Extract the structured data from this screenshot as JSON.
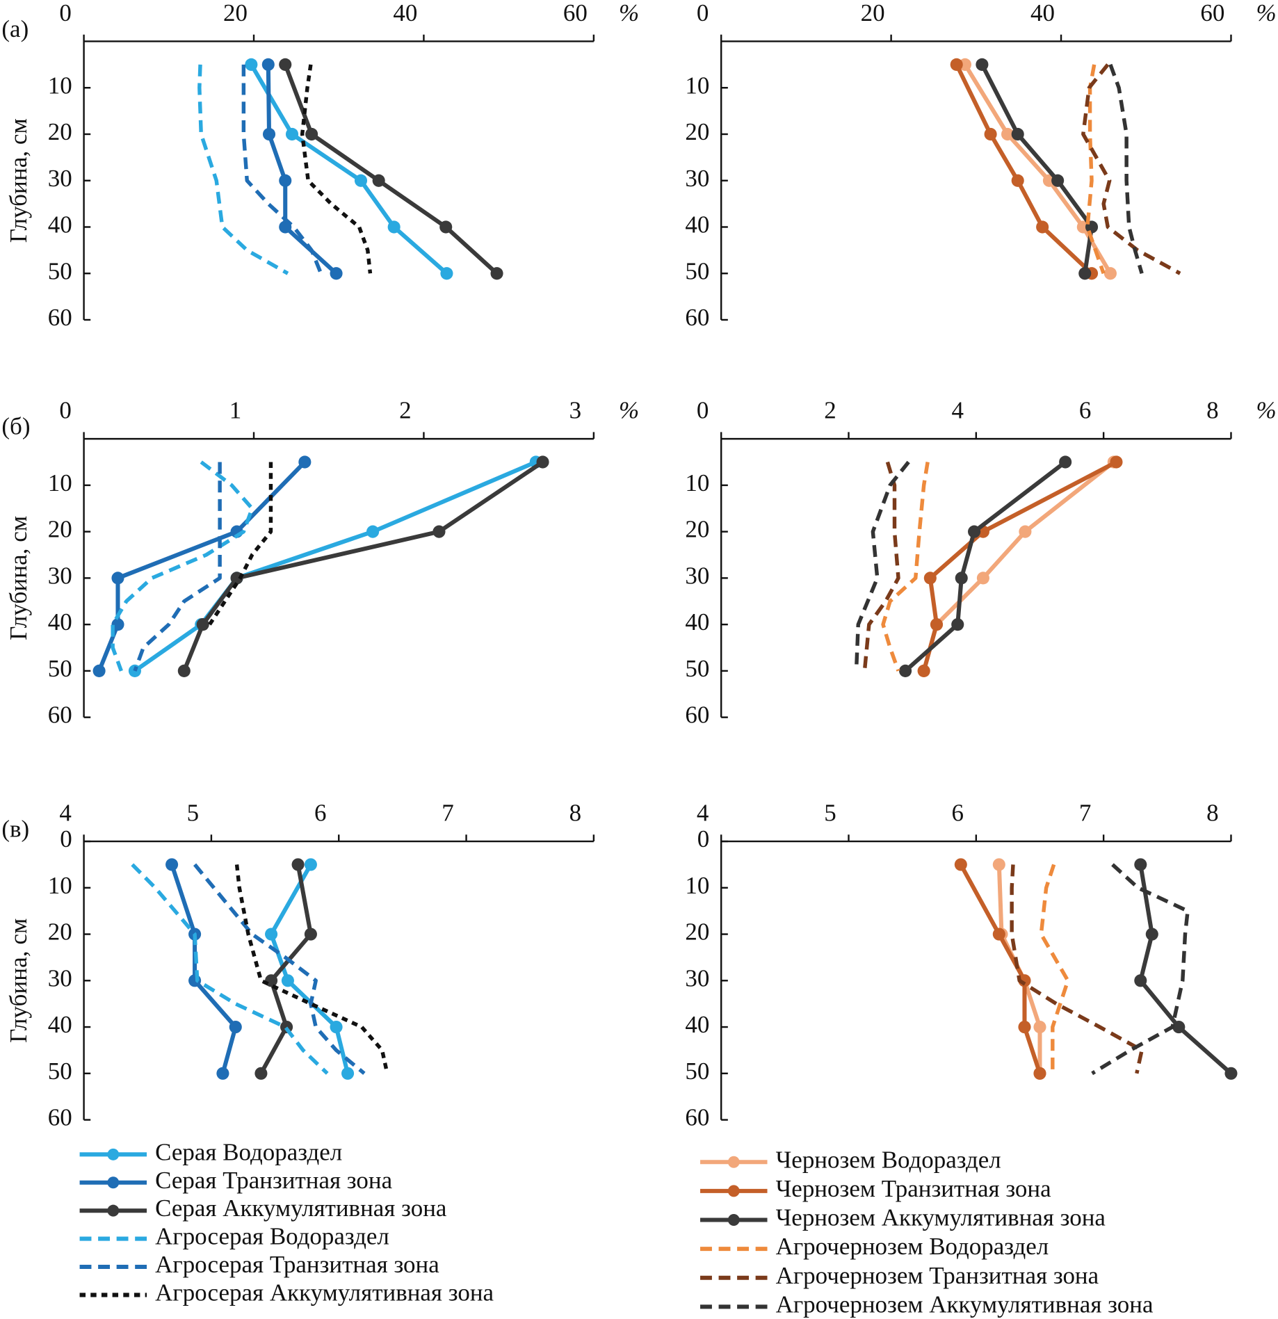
{
  "chart_data": [
    {
      "type": "line",
      "panel_label": "(а)",
      "unit": "%",
      "y_label": "Глубина, см",
      "xlim": [
        0,
        60
      ],
      "xticks": [
        0,
        20,
        40,
        60
      ],
      "ylim": [
        0,
        60
      ],
      "yticks": [
        10,
        20,
        30,
        40,
        50,
        60
      ],
      "series": [
        {
          "color": "#2aa9e0",
          "dash": "solid",
          "depths": [
            5,
            20,
            30,
            40,
            50
          ],
          "values": [
            19.7,
            24.5,
            32.6,
            36.5,
            42.7
          ]
        },
        {
          "color": "#1f6db5",
          "dash": "solid",
          "depths": [
            5,
            20,
            30,
            40,
            50
          ],
          "values": [
            21.7,
            21.8,
            23.7,
            23.7,
            29.7
          ]
        },
        {
          "color": "#3a3a3a",
          "dash": "solid",
          "depths": [
            5,
            20,
            30,
            40,
            50
          ],
          "values": [
            23.7,
            26.8,
            34.7,
            42.6,
            48.6
          ]
        },
        {
          "color": "#2aa9e0",
          "dash": "dashed",
          "depths": [
            5,
            10,
            20,
            30,
            40,
            45,
            50
          ],
          "values": [
            13.7,
            13.6,
            13.8,
            15.6,
            16.3,
            19.2,
            24.0
          ]
        },
        {
          "color": "#1f6db5",
          "dash": "dashed",
          "depths": [
            5,
            20,
            30,
            35,
            40,
            45,
            50
          ],
          "values": [
            18.8,
            18.8,
            19.2,
            21.7,
            24.7,
            26.8,
            27.9
          ]
        },
        {
          "color": "#111111",
          "dash": "dotted",
          "depths": [
            5,
            10,
            20,
            30,
            35,
            40,
            45,
            50
          ],
          "values": [
            26.7,
            26.3,
            25.7,
            26.4,
            29.1,
            32.4,
            33.4,
            33.7
          ]
        }
      ]
    },
    {
      "type": "line",
      "unit": "%",
      "xlim": [
        0,
        60
      ],
      "xticks": [
        0,
        20,
        40,
        60
      ],
      "ylim": [
        0,
        60
      ],
      "yticks": [
        10,
        20,
        30,
        40,
        50,
        60
      ],
      "series": [
        {
          "color": "#f2a77a",
          "dash": "solid",
          "depths": [
            5,
            20,
            30,
            40,
            50
          ],
          "values": [
            28.7,
            33.7,
            38.6,
            42.6,
            45.8
          ]
        },
        {
          "color": "#c45f28",
          "dash": "solid",
          "depths": [
            5,
            20,
            30,
            40,
            50
          ],
          "values": [
            27.7,
            31.7,
            34.9,
            37.8,
            43.6
          ]
        },
        {
          "color": "#3a3a3a",
          "dash": "solid",
          "depths": [
            5,
            20,
            30,
            40,
            50
          ],
          "values": [
            30.7,
            34.9,
            39.6,
            43.6,
            42.8
          ]
        },
        {
          "color": "#ee8a3c",
          "dash": "dashed",
          "depths": [
            5,
            10,
            20,
            30,
            40,
            50
          ],
          "values": [
            43.9,
            43.4,
            43.4,
            43.6,
            43.1,
            45.0
          ]
        },
        {
          "color": "#7a3a1a",
          "dash": "dashed",
          "depths": [
            5,
            10,
            20,
            30,
            35,
            40,
            45,
            50
          ],
          "values": [
            45.5,
            43.3,
            42.6,
            45.7,
            45.0,
            45.5,
            49.0,
            54.0
          ]
        },
        {
          "color": "#333333",
          "dash": "dashed",
          "depths": [
            5,
            10,
            20,
            30,
            40,
            45,
            50
          ],
          "values": [
            45.8,
            46.8,
            47.7,
            47.7,
            48.0,
            48.7,
            49.5
          ]
        }
      ]
    },
    {
      "type": "line",
      "panel_label": "(б)",
      "unit": "%",
      "y_label": "Глубина, см",
      "xlim": [
        0,
        3
      ],
      "xticks": [
        0,
        1,
        2,
        3
      ],
      "ylim": [
        0,
        60
      ],
      "yticks": [
        10,
        20,
        30,
        40,
        50,
        60
      ],
      "series": [
        {
          "color": "#2aa9e0",
          "dash": "solid",
          "depths": [
            5,
            20,
            30,
            40,
            50
          ],
          "values": [
            2.66,
            1.7,
            0.9,
            0.69,
            0.3
          ]
        },
        {
          "color": "#1f6db5",
          "dash": "solid",
          "depths": [
            5,
            20,
            30,
            40,
            50
          ],
          "values": [
            1.3,
            0.9,
            0.2,
            0.2,
            0.09
          ]
        },
        {
          "color": "#3a3a3a",
          "dash": "solid",
          "depths": [
            5,
            20,
            30,
            40,
            50
          ],
          "values": [
            2.7,
            2.09,
            0.9,
            0.7,
            0.59
          ]
        },
        {
          "color": "#2aa9e0",
          "dash": "dashed",
          "depths": [
            5,
            10,
            15,
            20,
            25,
            30,
            35,
            40,
            45,
            50
          ],
          "values": [
            0.69,
            0.87,
            0.99,
            0.94,
            0.72,
            0.4,
            0.25,
            0.17,
            0.17,
            0.22
          ]
        },
        {
          "color": "#1f6db5",
          "dash": "dashed",
          "depths": [
            5,
            20,
            30,
            35,
            40,
            45,
            50
          ],
          "values": [
            0.8,
            0.8,
            0.8,
            0.59,
            0.5,
            0.35,
            0.3
          ]
        },
        {
          "color": "#111111",
          "dash": "dotted",
          "depths": [
            5,
            10,
            20,
            25,
            30,
            40
          ],
          "values": [
            1.1,
            1.1,
            1.1,
            0.99,
            0.92,
            0.74
          ]
        }
      ]
    },
    {
      "type": "line",
      "unit": "%",
      "xlim": [
        0,
        8
      ],
      "xticks": [
        0,
        2,
        4,
        6,
        8
      ],
      "ylim": [
        0,
        60
      ],
      "yticks": [
        10,
        20,
        30,
        40,
        50,
        60
      ],
      "series": [
        {
          "color": "#f2a77a",
          "dash": "solid",
          "depths": [
            5,
            20,
            30,
            40,
            50
          ],
          "values": [
            6.16,
            4.77,
            4.11,
            3.38,
            3.18
          ]
        },
        {
          "color": "#c45f28",
          "dash": "solid",
          "depths": [
            5,
            20,
            30,
            40,
            50
          ],
          "values": [
            6.2,
            4.11,
            3.28,
            3.38,
            3.18
          ]
        },
        {
          "color": "#3a3a3a",
          "dash": "solid",
          "depths": [
            5,
            20,
            30,
            40,
            50
          ],
          "values": [
            5.4,
            3.97,
            3.77,
            3.71,
            2.89
          ]
        },
        {
          "color": "#ee8a3c",
          "dash": "dashed",
          "depths": [
            5,
            10,
            20,
            30,
            35,
            40,
            45,
            50
          ],
          "values": [
            3.24,
            3.18,
            3.11,
            3.05,
            2.65,
            2.54,
            2.65,
            2.78
          ]
        },
        {
          "color": "#7a3a1a",
          "dash": "dashed",
          "depths": [
            5,
            10,
            20,
            30,
            35,
            40,
            50
          ],
          "values": [
            2.61,
            2.72,
            2.72,
            2.78,
            2.58,
            2.32,
            2.25
          ]
        },
        {
          "color": "#333333",
          "dash": "dashed",
          "depths": [
            5,
            10,
            20,
            30,
            40,
            50
          ],
          "values": [
            2.94,
            2.65,
            2.38,
            2.45,
            2.15,
            2.12
          ]
        }
      ]
    },
    {
      "type": "line",
      "panel_label": "(в)",
      "y_label": "Глубина, см",
      "xlim": [
        4,
        8
      ],
      "xticks": [
        4,
        5,
        6,
        7,
        8
      ],
      "ylim": [
        0,
        60
      ],
      "yticks": [
        0,
        10,
        20,
        30,
        40,
        50,
        60
      ],
      "series": [
        {
          "name": "Серая Водораздел",
          "color": "#2aa9e0",
          "dash": "solid",
          "depths": [
            5,
            20,
            30,
            40,
            50
          ],
          "values": [
            5.78,
            5.47,
            5.6,
            5.98,
            6.07
          ]
        },
        {
          "name": "Серая Транзитная зона",
          "color": "#1f6db5",
          "dash": "solid",
          "depths": [
            5,
            20,
            30,
            40,
            50
          ],
          "values": [
            4.69,
            4.87,
            4.87,
            5.19,
            5.09
          ]
        },
        {
          "name": "Серая Аккумулятивная зона",
          "color": "#3a3a3a",
          "dash": "solid",
          "depths": [
            5,
            20,
            30,
            40,
            50
          ],
          "values": [
            5.68,
            5.78,
            5.47,
            5.59,
            5.39
          ]
        },
        {
          "name": "Агросерая Водораздел",
          "color": "#2aa9e0",
          "dash": "dashed",
          "depths": [
            5,
            10,
            20,
            30,
            35,
            40,
            45,
            50
          ],
          "values": [
            4.38,
            4.56,
            4.87,
            4.89,
            5.19,
            5.58,
            5.72,
            5.91
          ]
        },
        {
          "name": "Агросерая Транзитная зона",
          "color": "#1f6db5",
          "dash": "dashed",
          "depths": [
            5,
            10,
            20,
            25,
            30,
            35,
            40,
            45,
            50
          ],
          "values": [
            4.87,
            5.02,
            5.32,
            5.58,
            5.82,
            5.78,
            5.82,
            5.98,
            6.2
          ]
        },
        {
          "name": "Агросерая Аккумулятивная зона",
          "color": "#111111",
          "dash": "dotted",
          "depths": [
            5,
            10,
            20,
            30,
            35,
            40,
            45,
            50
          ],
          "values": [
            5.2,
            5.22,
            5.29,
            5.39,
            5.78,
            6.18,
            6.34,
            6.38
          ]
        }
      ]
    },
    {
      "type": "line",
      "xlim": [
        4,
        8
      ],
      "xticks": [
        4,
        5,
        6,
        7,
        8
      ],
      "ylim": [
        0,
        60
      ],
      "yticks": [
        0,
        10,
        20,
        30,
        40,
        50,
        60
      ],
      "series": [
        {
          "name": "Чернозем Водораздел",
          "color": "#f2a77a",
          "dash": "solid",
          "depths": [
            5,
            20,
            30,
            40,
            50
          ],
          "values": [
            6.18,
            6.2,
            6.38,
            6.5,
            6.5
          ]
        },
        {
          "name": "Чернозем Транзитная зона",
          "color": "#c45f28",
          "dash": "solid",
          "depths": [
            5,
            20,
            30,
            40,
            50
          ],
          "values": [
            5.88,
            6.18,
            6.38,
            6.38,
            6.5
          ]
        },
        {
          "name": "Чернозем Аккумулятивная зона",
          "color": "#3a3a3a",
          "dash": "solid",
          "depths": [
            5,
            20,
            30,
            40,
            50
          ],
          "values": [
            7.29,
            7.38,
            7.29,
            7.59,
            8.0
          ]
        },
        {
          "name": "Агрочернозем Водораздел",
          "color": "#ee8a3c",
          "dash": "dashed",
          "depths": [
            5,
            10,
            20,
            30,
            40,
            50
          ],
          "values": [
            6.61,
            6.55,
            6.51,
            6.72,
            6.6,
            6.6
          ]
        },
        {
          "name": "Агрочернозем Транзитная зона",
          "color": "#7a3a1a",
          "dash": "dashed",
          "depths": [
            5,
            10,
            20,
            30,
            35,
            40,
            45,
            50
          ],
          "values": [
            6.29,
            6.28,
            6.28,
            6.34,
            6.63,
            6.97,
            7.3,
            7.26
          ]
        },
        {
          "name": "Агрочернозем Аккумулятивная зона",
          "color": "#333333",
          "dash": "dashed",
          "depths": [
            5,
            10,
            15,
            20,
            30,
            40,
            45,
            50
          ],
          "values": [
            7.07,
            7.27,
            7.66,
            7.64,
            7.62,
            7.54,
            7.21,
            6.91
          ]
        }
      ]
    }
  ]
}
